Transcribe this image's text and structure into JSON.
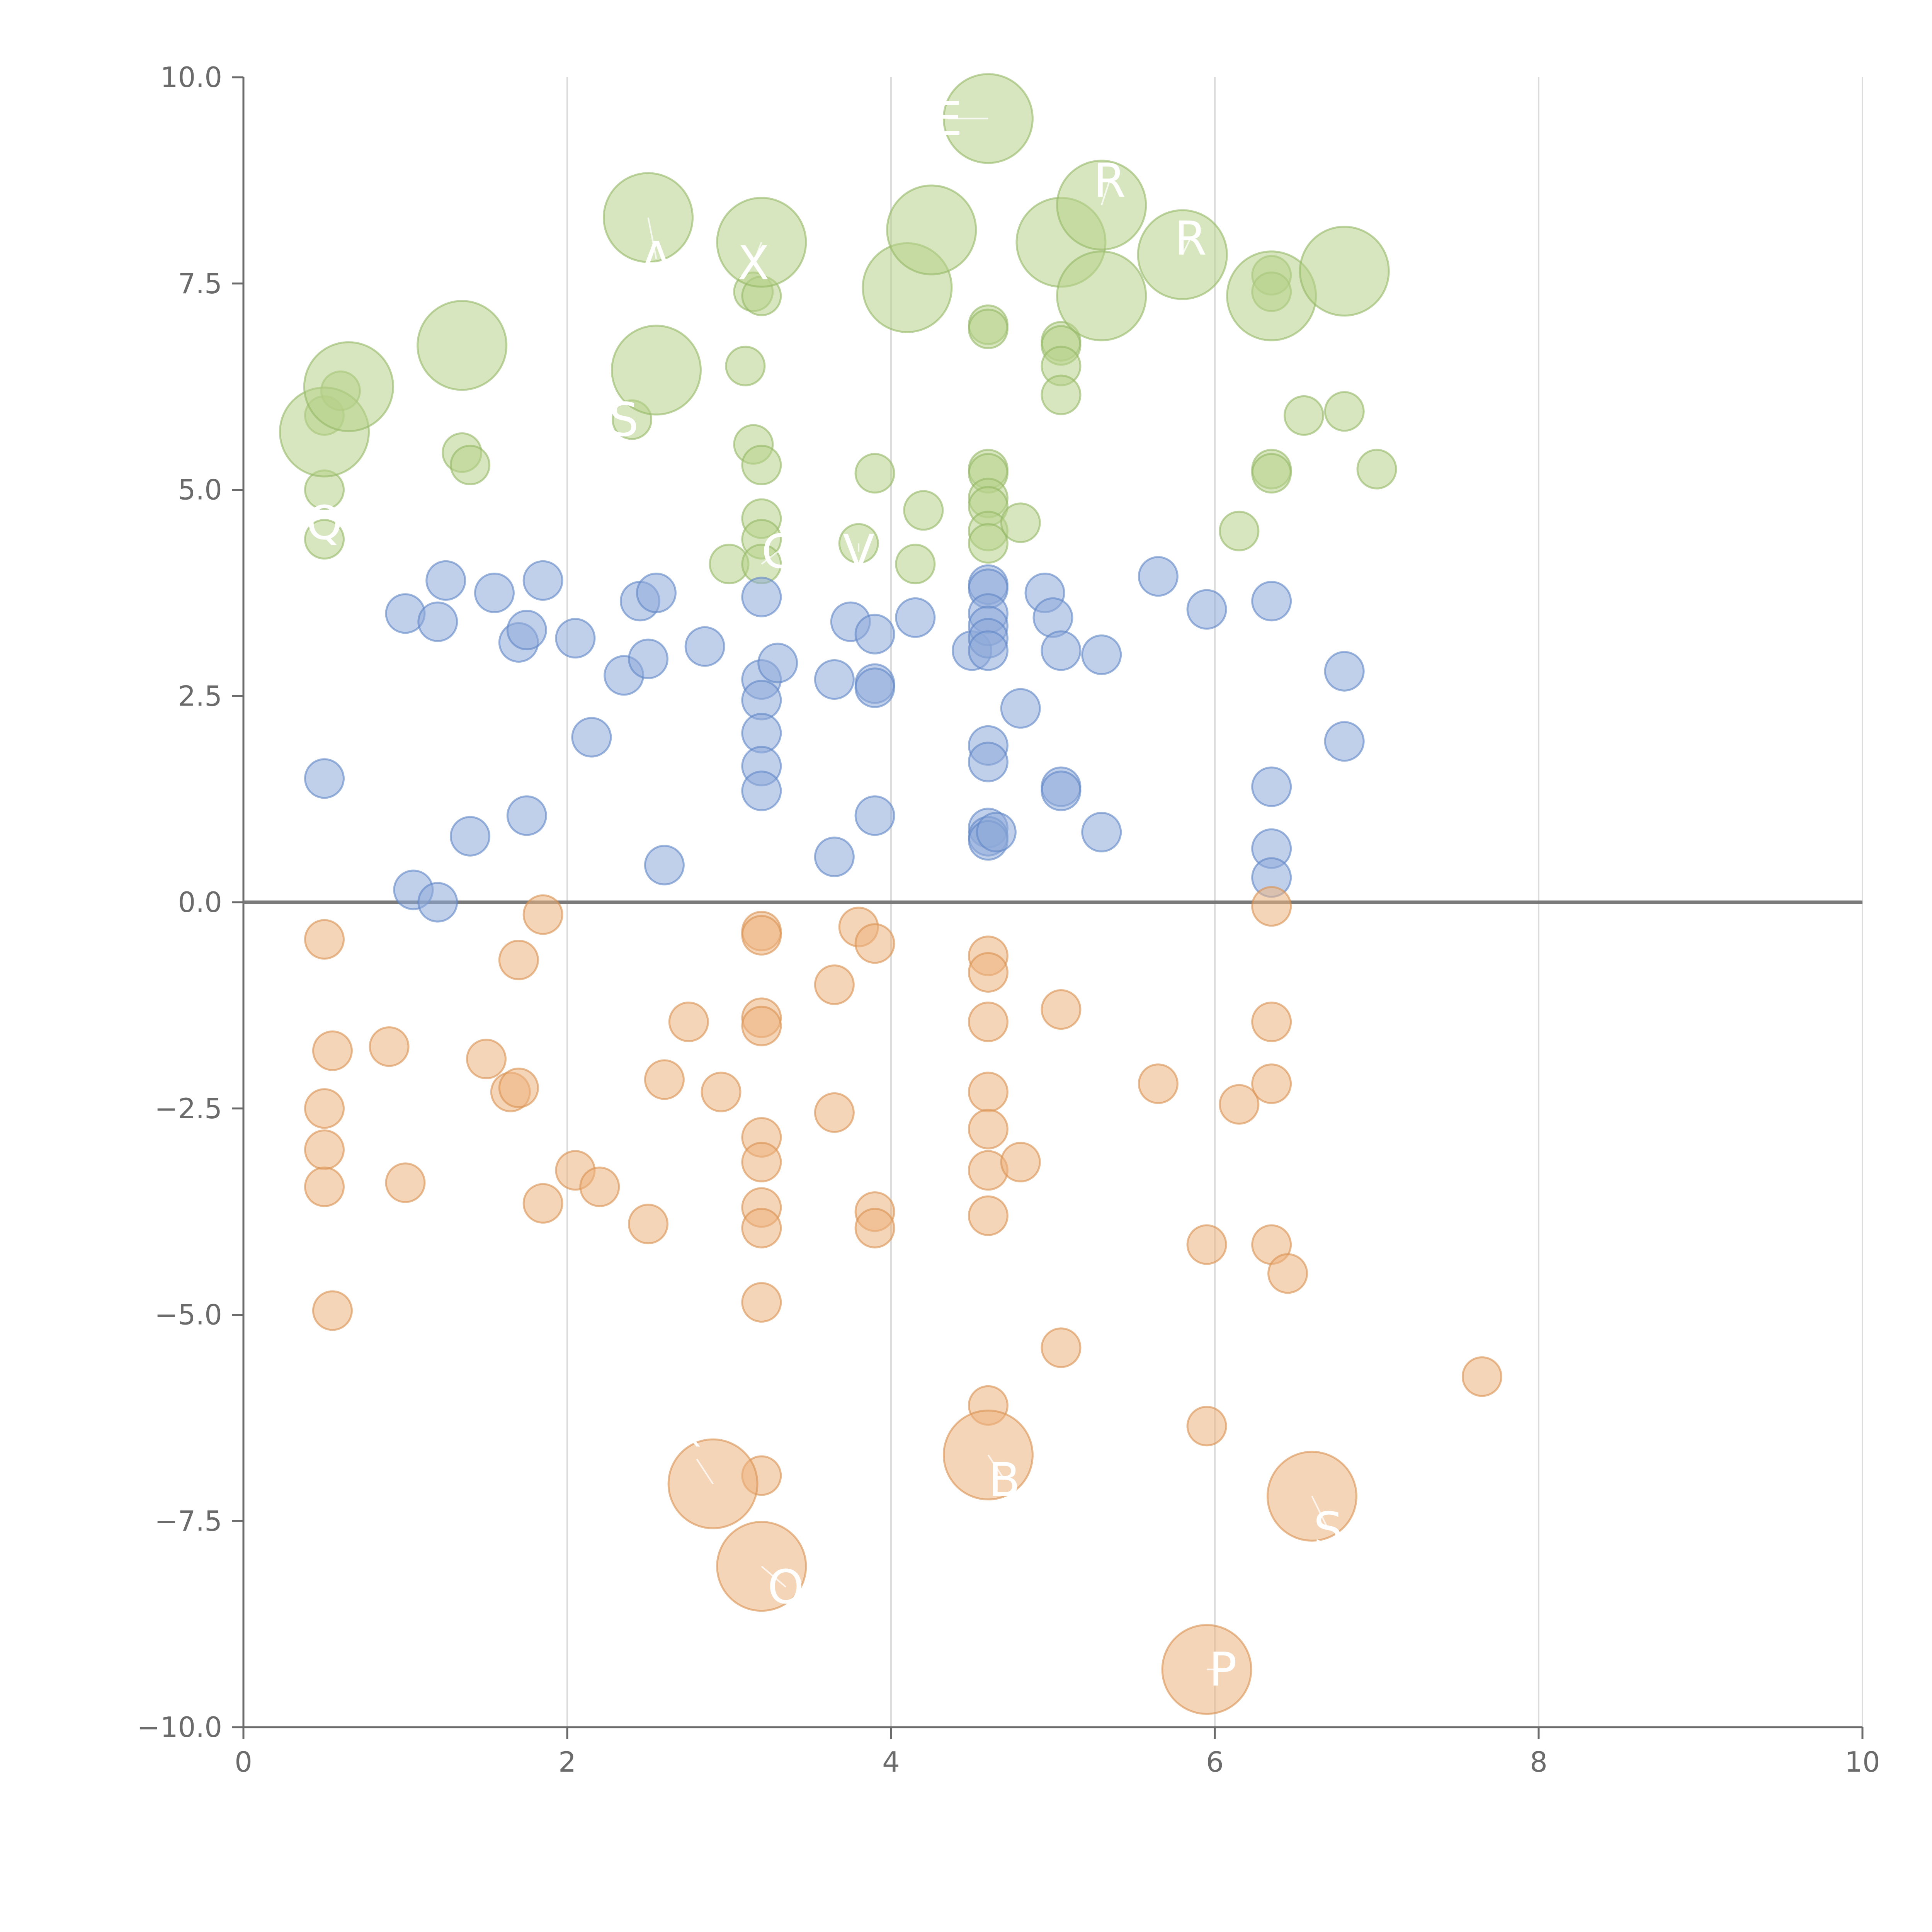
{
  "chart_data": {
    "type": "scatter",
    "title": "",
    "xlabel": "",
    "ylabel": "",
    "xlim": [
      0,
      10
    ],
    "ylim": [
      -10,
      10
    ],
    "x_ticks": [
      0,
      2,
      4,
      6,
      8,
      10
    ],
    "x_tick_labels": [
      "0",
      "2",
      "4",
      "6",
      "8",
      "10"
    ],
    "y_ticks": [
      10,
      7.5,
      5,
      2.5,
      0,
      -2.5,
      -5,
      -7.5,
      -10
    ],
    "y_tick_labels": [
      "10.0",
      "7.5",
      "5.0",
      "2.5",
      "0.0",
      "−2.5",
      "−5.0",
      "−7.5",
      "−10.0"
    ],
    "grid": "vertical",
    "reference_line_y": 0,
    "colors": {
      "green_fill": "#b6d18b",
      "green_stroke": "#95b866",
      "blue_fill": "#8eaad9",
      "blue_stroke": "#5f86c6",
      "orange_fill": "#ecb27e",
      "orange_stroke": "#d99150",
      "axis": "#6b6b6b",
      "grid": "#dcdcdc"
    },
    "series": [
      {
        "name": "green",
        "color": "#b6d18b",
        "points": [
          {
            "x": 0.5,
            "y": 4.4,
            "s": 1
          },
          {
            "x": 0.5,
            "y": 5.0,
            "s": 1
          },
          {
            "x": 0.5,
            "y": 5.9,
            "s": 1
          },
          {
            "x": 0.6,
            "y": 6.2,
            "s": 1
          },
          {
            "x": 1.35,
            "y": 5.45,
            "s": 1
          },
          {
            "x": 1.4,
            "y": 5.3,
            "s": 1
          },
          {
            "x": 2.4,
            "y": 5.85,
            "s": 1
          },
          {
            "x": 3.0,
            "y": 4.1,
            "s": 1
          },
          {
            "x": 3.1,
            "y": 6.5,
            "s": 1
          },
          {
            "x": 3.15,
            "y": 5.55,
            "s": 1
          },
          {
            "x": 3.15,
            "y": 7.4,
            "s": 1
          },
          {
            "x": 3.2,
            "y": 7.35,
            "s": 1
          },
          {
            "x": 3.2,
            "y": 5.3,
            "s": 1
          },
          {
            "x": 3.2,
            "y": 4.65,
            "s": 1
          },
          {
            "x": 3.2,
            "y": 4.4,
            "s": 1
          },
          {
            "x": 3.2,
            "y": 4.1,
            "s": 1
          },
          {
            "x": 3.8,
            "y": 4.35,
            "s": 1
          },
          {
            "x": 3.9,
            "y": 5.2,
            "s": 1
          },
          {
            "x": 4.15,
            "y": 4.1,
            "s": 1
          },
          {
            "x": 4.2,
            "y": 4.75,
            "s": 1
          },
          {
            "x": 4.6,
            "y": 7.0,
            "s": 1
          },
          {
            "x": 4.6,
            "y": 6.95,
            "s": 1
          },
          {
            "x": 4.6,
            "y": 5.25,
            "s": 1
          },
          {
            "x": 4.6,
            "y": 5.2,
            "s": 1
          },
          {
            "x": 4.6,
            "y": 4.9,
            "s": 1
          },
          {
            "x": 4.6,
            "y": 4.8,
            "s": 1
          },
          {
            "x": 4.6,
            "y": 4.5,
            "s": 1
          },
          {
            "x": 4.6,
            "y": 4.35,
            "s": 1
          },
          {
            "x": 4.8,
            "y": 4.6,
            "s": 1
          },
          {
            "x": 5.05,
            "y": 6.8,
            "s": 1
          },
          {
            "x": 5.05,
            "y": 6.75,
            "s": 1
          },
          {
            "x": 5.05,
            "y": 6.5,
            "s": 1
          },
          {
            "x": 5.05,
            "y": 6.15,
            "s": 1
          },
          {
            "x": 6.15,
            "y": 4.5,
            "s": 1
          },
          {
            "x": 6.35,
            "y": 7.6,
            "s": 1
          },
          {
            "x": 6.35,
            "y": 7.4,
            "s": 1
          },
          {
            "x": 6.35,
            "y": 5.25,
            "s": 1
          },
          {
            "x": 6.35,
            "y": 5.2,
            "s": 1
          },
          {
            "x": 6.55,
            "y": 5.9,
            "s": 1
          },
          {
            "x": 6.8,
            "y": 5.95,
            "s": 1
          },
          {
            "x": 7.0,
            "y": 5.25,
            "s": 1
          },
          {
            "x": 0.5,
            "y": 5.7,
            "s": 2
          },
          {
            "x": 0.65,
            "y": 6.25,
            "s": 2
          },
          {
            "x": 1.35,
            "y": 6.75,
            "s": 2
          },
          {
            "x": 2.5,
            "y": 8.3,
            "s": 2
          },
          {
            "x": 2.55,
            "y": 6.45,
            "s": 2
          },
          {
            "x": 3.2,
            "y": 8.0,
            "s": 2
          },
          {
            "x": 4.1,
            "y": 7.45,
            "s": 2
          },
          {
            "x": 4.25,
            "y": 8.15,
            "s": 2
          },
          {
            "x": 4.6,
            "y": 9.5,
            "s": 2
          },
          {
            "x": 5.05,
            "y": 8.0,
            "s": 2
          },
          {
            "x": 5.3,
            "y": 8.45,
            "s": 2
          },
          {
            "x": 5.3,
            "y": 7.35,
            "s": 2
          },
          {
            "x": 5.8,
            "y": 7.85,
            "s": 2
          },
          {
            "x": 6.35,
            "y": 7.35,
            "s": 2
          },
          {
            "x": 6.8,
            "y": 7.65,
            "s": 2
          }
        ]
      },
      {
        "name": "blue",
        "color": "#8eaad9",
        "points": [
          {
            "x": 0.5,
            "y": 1.5,
            "s": 1
          },
          {
            "x": 1.0,
            "y": 3.5,
            "s": 1
          },
          {
            "x": 1.05,
            "y": 0.15,
            "s": 1
          },
          {
            "x": 1.2,
            "y": 3.4,
            "s": 1
          },
          {
            "x": 1.2,
            "y": 0.0,
            "s": 1
          },
          {
            "x": 1.25,
            "y": 3.9,
            "s": 1
          },
          {
            "x": 1.4,
            "y": 0.8,
            "s": 1
          },
          {
            "x": 1.55,
            "y": 3.75,
            "s": 1
          },
          {
            "x": 1.7,
            "y": 3.15,
            "s": 1
          },
          {
            "x": 1.75,
            "y": 3.3,
            "s": 1
          },
          {
            "x": 1.75,
            "y": 1.05,
            "s": 1
          },
          {
            "x": 1.85,
            "y": 3.9,
            "s": 1
          },
          {
            "x": 2.05,
            "y": 3.2,
            "s": 1
          },
          {
            "x": 2.15,
            "y": 2.0,
            "s": 1
          },
          {
            "x": 2.35,
            "y": 2.75,
            "s": 1
          },
          {
            "x": 2.45,
            "y": 3.65,
            "s": 1
          },
          {
            "x": 2.5,
            "y": 2.95,
            "s": 1
          },
          {
            "x": 2.55,
            "y": 3.75,
            "s": 1
          },
          {
            "x": 2.6,
            "y": 0.45,
            "s": 1
          },
          {
            "x": 2.85,
            "y": 3.1,
            "s": 1
          },
          {
            "x": 3.2,
            "y": 3.7,
            "s": 1
          },
          {
            "x": 3.2,
            "y": 2.7,
            "s": 1
          },
          {
            "x": 3.2,
            "y": 2.45,
            "s": 1
          },
          {
            "x": 3.2,
            "y": 2.05,
            "s": 1
          },
          {
            "x": 3.2,
            "y": 1.65,
            "s": 1
          },
          {
            "x": 3.2,
            "y": 1.35,
            "s": 1
          },
          {
            "x": 3.3,
            "y": 2.9,
            "s": 1
          },
          {
            "x": 3.65,
            "y": 0.55,
            "s": 1
          },
          {
            "x": 3.65,
            "y": 2.7,
            "s": 1
          },
          {
            "x": 3.75,
            "y": 3.4,
            "s": 1
          },
          {
            "x": 3.9,
            "y": 3.25,
            "s": 1
          },
          {
            "x": 3.9,
            "y": 2.65,
            "s": 1
          },
          {
            "x": 3.9,
            "y": 2.6,
            "s": 1
          },
          {
            "x": 3.9,
            "y": 1.05,
            "s": 1
          },
          {
            "x": 4.15,
            "y": 3.45,
            "s": 1
          },
          {
            "x": 4.5,
            "y": 3.05,
            "s": 1
          },
          {
            "x": 4.6,
            "y": 3.85,
            "s": 1
          },
          {
            "x": 4.6,
            "y": 3.8,
            "s": 1
          },
          {
            "x": 4.6,
            "y": 3.5,
            "s": 1
          },
          {
            "x": 4.6,
            "y": 3.35,
            "s": 1
          },
          {
            "x": 4.6,
            "y": 3.2,
            "s": 1
          },
          {
            "x": 4.6,
            "y": 3.05,
            "s": 1
          },
          {
            "x": 4.6,
            "y": 1.9,
            "s": 1
          },
          {
            "x": 4.6,
            "y": 1.7,
            "s": 1
          },
          {
            "x": 4.6,
            "y": 0.9,
            "s": 1
          },
          {
            "x": 4.6,
            "y": 0.8,
            "s": 1
          },
          {
            "x": 4.6,
            "y": 0.75,
            "s": 1
          },
          {
            "x": 4.65,
            "y": 0.85,
            "s": 1
          },
          {
            "x": 4.8,
            "y": 2.35,
            "s": 1
          },
          {
            "x": 4.95,
            "y": 3.75,
            "s": 1
          },
          {
            "x": 5.0,
            "y": 3.45,
            "s": 1
          },
          {
            "x": 5.05,
            "y": 3.05,
            "s": 1
          },
          {
            "x": 5.05,
            "y": 1.4,
            "s": 1
          },
          {
            "x": 5.05,
            "y": 1.35,
            "s": 1
          },
          {
            "x": 5.3,
            "y": 3.0,
            "s": 1
          },
          {
            "x": 5.3,
            "y": 0.85,
            "s": 1
          },
          {
            "x": 5.65,
            "y": 3.95,
            "s": 1
          },
          {
            "x": 5.95,
            "y": 3.55,
            "s": 1
          },
          {
            "x": 6.35,
            "y": 3.65,
            "s": 1
          },
          {
            "x": 6.35,
            "y": 1.4,
            "s": 1
          },
          {
            "x": 6.35,
            "y": 0.65,
            "s": 1
          },
          {
            "x": 6.35,
            "y": 0.3,
            "s": 1
          },
          {
            "x": 6.8,
            "y": 2.8,
            "s": 1
          },
          {
            "x": 6.8,
            "y": 1.95,
            "s": 1
          }
        ]
      },
      {
        "name": "orange",
        "color": "#ecb27e",
        "points": [
          {
            "x": 0.5,
            "y": -0.45,
            "s": 1
          },
          {
            "x": 0.55,
            "y": -1.8,
            "s": 1
          },
          {
            "x": 0.5,
            "y": -2.5,
            "s": 1
          },
          {
            "x": 0.5,
            "y": -3.0,
            "s": 1
          },
          {
            "x": 0.5,
            "y": -3.45,
            "s": 1
          },
          {
            "x": 0.55,
            "y": -4.95,
            "s": 1
          },
          {
            "x": 0.9,
            "y": -1.75,
            "s": 1
          },
          {
            "x": 1.0,
            "y": -3.4,
            "s": 1
          },
          {
            "x": 1.5,
            "y": -1.9,
            "s": 1
          },
          {
            "x": 1.65,
            "y": -2.3,
            "s": 1
          },
          {
            "x": 1.7,
            "y": -2.25,
            "s": 1
          },
          {
            "x": 1.7,
            "y": -0.7,
            "s": 1
          },
          {
            "x": 1.85,
            "y": -0.15,
            "s": 1
          },
          {
            "x": 1.85,
            "y": -3.65,
            "s": 1
          },
          {
            "x": 2.05,
            "y": -3.25,
            "s": 1
          },
          {
            "x": 2.2,
            "y": -3.45,
            "s": 1
          },
          {
            "x": 2.5,
            "y": -3.9,
            "s": 1
          },
          {
            "x": 2.6,
            "y": -2.15,
            "s": 1
          },
          {
            "x": 2.75,
            "y": -1.45,
            "s": 1
          },
          {
            "x": 2.95,
            "y": -2.3,
            "s": 1
          },
          {
            "x": 3.2,
            "y": -0.35,
            "s": 1
          },
          {
            "x": 3.2,
            "y": -0.4,
            "s": 1
          },
          {
            "x": 3.2,
            "y": -1.4,
            "s": 1
          },
          {
            "x": 3.2,
            "y": -1.5,
            "s": 1
          },
          {
            "x": 3.2,
            "y": -2.85,
            "s": 1
          },
          {
            "x": 3.2,
            "y": -3.15,
            "s": 1
          },
          {
            "x": 3.2,
            "y": -3.7,
            "s": 1
          },
          {
            "x": 3.2,
            "y": -3.95,
            "s": 1
          },
          {
            "x": 3.2,
            "y": -4.85,
            "s": 1
          },
          {
            "x": 3.2,
            "y": -6.95,
            "s": 1
          },
          {
            "x": 3.65,
            "y": -1.0,
            "s": 1
          },
          {
            "x": 3.65,
            "y": -2.55,
            "s": 1
          },
          {
            "x": 3.8,
            "y": -0.3,
            "s": 1
          },
          {
            "x": 3.9,
            "y": -0.5,
            "s": 1
          },
          {
            "x": 3.9,
            "y": -3.75,
            "s": 1
          },
          {
            "x": 3.9,
            "y": -3.95,
            "s": 1
          },
          {
            "x": 4.6,
            "y": -0.65,
            "s": 1
          },
          {
            "x": 4.6,
            "y": -0.85,
            "s": 1
          },
          {
            "x": 4.6,
            "y": -1.45,
            "s": 1
          },
          {
            "x": 4.6,
            "y": -2.3,
            "s": 1
          },
          {
            "x": 4.6,
            "y": -2.75,
            "s": 1
          },
          {
            "x": 4.6,
            "y": -3.25,
            "s": 1
          },
          {
            "x": 4.6,
            "y": -3.8,
            "s": 1
          },
          {
            "x": 4.6,
            "y": -6.1,
            "s": 1
          },
          {
            "x": 4.8,
            "y": -3.15,
            "s": 1
          },
          {
            "x": 5.05,
            "y": -1.3,
            "s": 1
          },
          {
            "x": 5.05,
            "y": -5.4,
            "s": 1
          },
          {
            "x": 5.65,
            "y": -2.2,
            "s": 1
          },
          {
            "x": 5.95,
            "y": -4.15,
            "s": 1
          },
          {
            "x": 5.95,
            "y": -6.35,
            "s": 1
          },
          {
            "x": 6.15,
            "y": -2.45,
            "s": 1
          },
          {
            "x": 6.35,
            "y": -0.05,
            "s": 1
          },
          {
            "x": 6.35,
            "y": -1.45,
            "s": 1
          },
          {
            "x": 6.35,
            "y": -2.2,
            "s": 1
          },
          {
            "x": 6.35,
            "y": -4.15,
            "s": 1
          },
          {
            "x": 6.45,
            "y": -4.5,
            "s": 1
          },
          {
            "x": 7.65,
            "y": -5.75,
            "s": 1
          },
          {
            "x": 2.9,
            "y": -7.05,
            "s": 2
          },
          {
            "x": 3.2,
            "y": -8.05,
            "s": 2
          },
          {
            "x": 4.6,
            "y": -6.7,
            "s": 2
          },
          {
            "x": 5.95,
            "y": -9.3,
            "s": 2
          },
          {
            "x": 6.6,
            "y": -7.2,
            "s": 2
          }
        ]
      }
    ],
    "point_labels": [
      {
        "text": "Q",
        "x": 0.5,
        "y": 4.6,
        "from_x": 0.5,
        "from_y": 4.6
      },
      {
        "text": "X",
        "x": 3.15,
        "y": 7.75,
        "from_x": 3.2,
        "from_y": 8.0
      },
      {
        "text": "A",
        "x": 2.55,
        "y": 7.8,
        "from_x": 2.5,
        "from_y": 8.3
      },
      {
        "text": "V",
        "x": 3.8,
        "y": 4.25,
        "from_x": 3.8,
        "from_y": 4.35
      },
      {
        "text": "C",
        "x": 3.3,
        "y": 4.25,
        "from_x": 3.2,
        "from_y": 4.1
      },
      {
        "text": "E",
        "x": 4.35,
        "y": 9.5,
        "from_x": 4.6,
        "from_y": 9.5
      },
      {
        "text": "R",
        "x": 5.35,
        "y": 8.75,
        "from_x": 5.3,
        "from_y": 8.45
      },
      {
        "text": "R",
        "x": 5.85,
        "y": 8.05,
        "from_x": 5.8,
        "from_y": 7.85
      },
      {
        "text": "S",
        "x": 2.35,
        "y": 5.85,
        "from_x": 2.4,
        "from_y": 5.85
      },
      {
        "text": "B",
        "x": 4.7,
        "y": -7.0,
        "from_x": 4.6,
        "from_y": -6.7
      },
      {
        "text": "S",
        "x": 6.7,
        "y": -7.6,
        "from_x": 6.6,
        "from_y": -7.2
      },
      {
        "text": "O",
        "x": 3.35,
        "y": -8.3,
        "from_x": 3.2,
        "from_y": -8.05
      },
      {
        "text": "P",
        "x": 6.05,
        "y": -9.3,
        "from_x": 5.95,
        "from_y": -9.3
      },
      {
        "text": "`",
        "x": 2.8,
        "y": -6.75,
        "from_x": 2.9,
        "from_y": -7.05
      }
    ]
  }
}
